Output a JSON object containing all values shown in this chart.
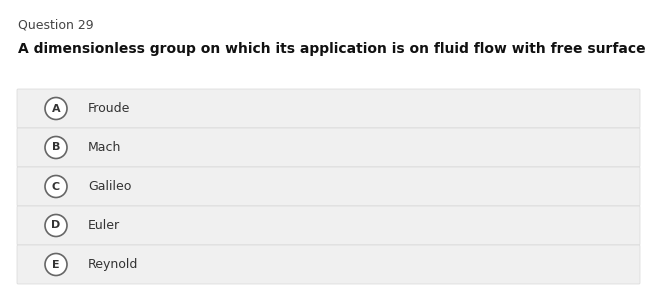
{
  "title": "Question 29",
  "question": "A dimensionless group on which its application is on fluid flow with free surface",
  "options": [
    {
      "label": "A",
      "text": "Froude"
    },
    {
      "label": "B",
      "text": "Mach"
    },
    {
      "label": "C",
      "text": "Galileo"
    },
    {
      "label": "D",
      "text": "Euler"
    },
    {
      "label": "E",
      "text": "Reynold"
    }
  ],
  "bg_color": "#ffffff",
  "option_bg_color": "#f0f0f0",
  "option_border_color": "#d8d8d8",
  "title_color": "#444444",
  "question_color": "#111111",
  "option_text_color": "#333333",
  "circle_edge_color": "#666666",
  "circle_face_color": "#ffffff",
  "title_fontsize": 9.0,
  "question_fontsize": 10.0,
  "option_fontsize": 9.0,
  "label_fontsize": 8.0
}
